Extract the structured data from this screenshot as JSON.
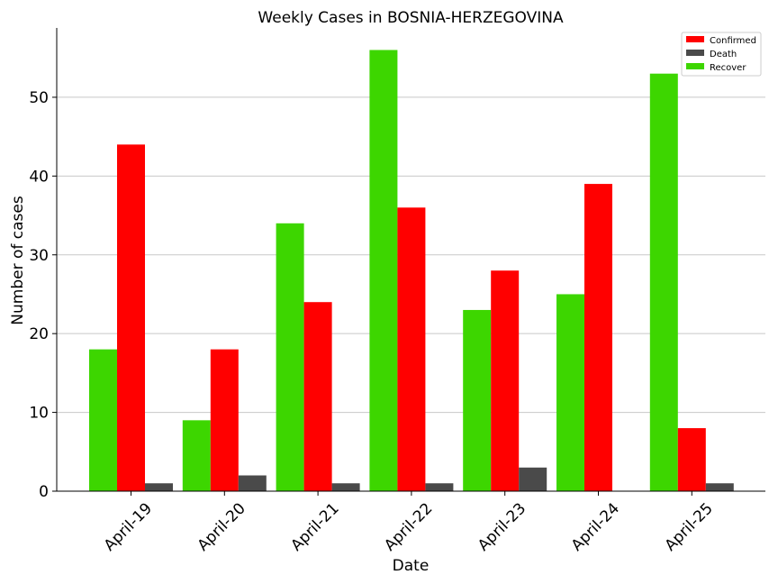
{
  "chart_data": {
    "type": "bar",
    "title": "Weekly Cases in BOSNIA-HERZEGOVINA",
    "xlabel": "Date",
    "ylabel": "Number of cases",
    "categories": [
      "April-19",
      "April-20",
      "April-21",
      "April-22",
      "April-23",
      "April-24",
      "April-25"
    ],
    "series": [
      {
        "name": "Recover",
        "color": "#3dd600",
        "values": [
          18,
          9,
          34,
          56,
          23,
          25,
          53
        ]
      },
      {
        "name": "Confirmed",
        "color": "#ff0000",
        "values": [
          44,
          18,
          24,
          36,
          28,
          39,
          8
        ]
      },
      {
        "name": "Death",
        "color": "#4a4a4a",
        "values": [
          1,
          2,
          1,
          1,
          3,
          0,
          1
        ]
      }
    ],
    "legend_order": [
      "Confirmed",
      "Death",
      "Recover"
    ],
    "legend_position": "top-right",
    "ylim": [
      0,
      58.8
    ],
    "yticks": [
      0,
      10,
      20,
      30,
      40,
      50
    ],
    "grid": "y"
  }
}
